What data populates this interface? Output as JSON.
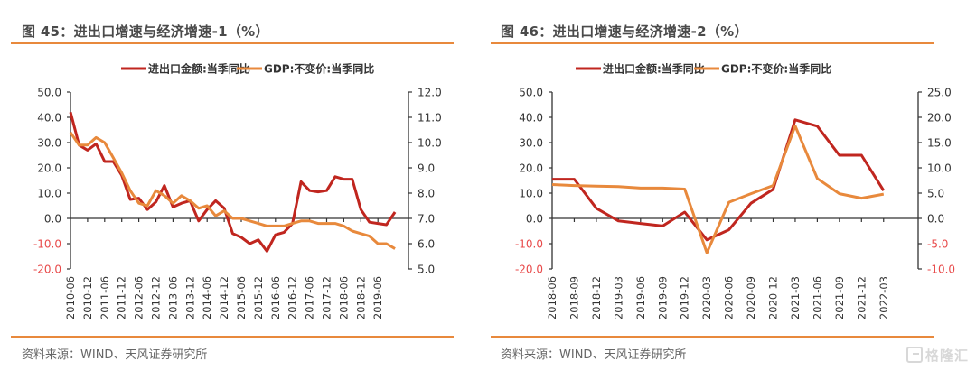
{
  "colors": {
    "accent": "#e8893c",
    "trade": "#c0261f",
    "gdp": "#e8893c",
    "negative_tick": "#e84a4a"
  },
  "watermark": "格隆汇",
  "chart_data": [
    {
      "type": "line",
      "title": "图 45：进出口增速与经济增速-1（%）",
      "source": "资料来源：WIND、天风证券研究所",
      "legend": [
        "进出口金额:当季同比",
        "GDP:不变价:当季同比"
      ],
      "legend_position": "top-center",
      "x_tick_labels": [
        "2010-06",
        "2010-12",
        "2011-06",
        "2011-12",
        "2012-06",
        "2012-12",
        "2013-06",
        "2013-12",
        "2014-06",
        "2014-12",
        "2015-06",
        "2015-12",
        "2016-06",
        "2016-12",
        "2017-06",
        "2017-12",
        "2018-06",
        "2018-12",
        "2019-06"
      ],
      "x": [
        "2010-06",
        "2010-09",
        "2010-12",
        "2011-03",
        "2011-06",
        "2011-09",
        "2011-12",
        "2012-03",
        "2012-06",
        "2012-09",
        "2012-12",
        "2013-03",
        "2013-06",
        "2013-09",
        "2013-12",
        "2014-03",
        "2014-06",
        "2014-09",
        "2014-12",
        "2015-03",
        "2015-06",
        "2015-09",
        "2015-12",
        "2016-03",
        "2016-06",
        "2016-09",
        "2016-12",
        "2017-03",
        "2017-06",
        "2017-09",
        "2017-12",
        "2018-03",
        "2018-06",
        "2018-09",
        "2018-12",
        "2019-03",
        "2019-06",
        "2019-09",
        "2019-12"
      ],
      "y_left": {
        "ticks": [
          "50.0",
          "40.0",
          "30.0",
          "20.0",
          "10.0",
          "0.0",
          "-10.0",
          "-20.0"
        ],
        "range": [
          -20,
          50
        ]
      },
      "y_right": {
        "ticks": [
          "12.0",
          "11.0",
          "10.0",
          "9.0",
          "8.0",
          "7.0",
          "6.0",
          "5.0"
        ],
        "range": [
          5,
          12
        ]
      },
      "series": [
        {
          "name": "进出口金额:当季同比",
          "axis": "left",
          "values": [
            42,
            29,
            27,
            29.5,
            22.5,
            22.5,
            17,
            7.5,
            8,
            3.5,
            6.5,
            13,
            4.5,
            6,
            7,
            -1,
            3.5,
            7,
            4,
            -6,
            -7.5,
            -10,
            -8.5,
            -13,
            -6.5,
            -5.5,
            -2,
            14.5,
            11,
            10.5,
            11,
            16.5,
            15.5,
            15.5,
            3.5,
            -1.5,
            -2,
            -2.5,
            2.5
          ]
        },
        {
          "name": "GDP:不变价:当季同比",
          "axis": "right",
          "values": [
            10.4,
            9.9,
            9.9,
            10.2,
            10.0,
            9.4,
            8.8,
            8.1,
            7.6,
            7.5,
            8.1,
            7.9,
            7.6,
            7.9,
            7.7,
            7.4,
            7.5,
            7.1,
            7.3,
            7.0,
            7.0,
            6.9,
            6.8,
            6.7,
            6.7,
            6.7,
            6.8,
            6.9,
            6.9,
            6.8,
            6.8,
            6.8,
            6.7,
            6.5,
            6.4,
            6.3,
            6.0,
            6.0,
            5.8
          ]
        }
      ]
    },
    {
      "type": "line",
      "title": "图 46：进出口增速与经济增速-2（%）",
      "source": "资料来源：WIND、天风证券研究所",
      "legend": [
        "进出口金额:当季同比",
        "GDP:不变价:当季同比"
      ],
      "legend_position": "top-center",
      "x_tick_labels": [
        "2018-06",
        "2018-09",
        "2018-12",
        "2019-03",
        "2019-06",
        "2019-09",
        "2019-12",
        "2020-03",
        "2020-06",
        "2020-09",
        "2020-12",
        "2021-03",
        "2021-06",
        "2021-09",
        "2021-12",
        "2022-03"
      ],
      "x": [
        "2018-06",
        "2018-09",
        "2018-12",
        "2019-03",
        "2019-06",
        "2019-09",
        "2019-12",
        "2020-03",
        "2020-06",
        "2020-09",
        "2020-12",
        "2021-03",
        "2021-06",
        "2021-09",
        "2021-12",
        "2022-03"
      ],
      "y_left": {
        "ticks": [
          "50.0",
          "40.0",
          "30.0",
          "20.0",
          "10.0",
          "0.0",
          "-10.0",
          "-20.0"
        ],
        "range": [
          -20,
          50
        ]
      },
      "y_right": {
        "ticks": [
          "25.0",
          "20.0",
          "15.0",
          "10.0",
          "5.0",
          "0.0",
          "-5.0",
          "-10.0"
        ],
        "range": [
          -10,
          25
        ]
      },
      "series": [
        {
          "name": "进出口金额:当季同比",
          "axis": "left",
          "values": [
            15.5,
            15.5,
            4,
            -1,
            -2,
            -3,
            2.5,
            -8.5,
            -4.5,
            6,
            11.5,
            39,
            36.5,
            25,
            25,
            11
          ]
        },
        {
          "name": "GDP:不变价:当季同比",
          "axis": "right",
          "values": [
            6.7,
            6.5,
            6.4,
            6.3,
            6.0,
            6.0,
            5.8,
            -6.8,
            3.2,
            4.9,
            6.5,
            18.3,
            7.9,
            4.9,
            4.0,
            4.8
          ]
        }
      ]
    }
  ]
}
